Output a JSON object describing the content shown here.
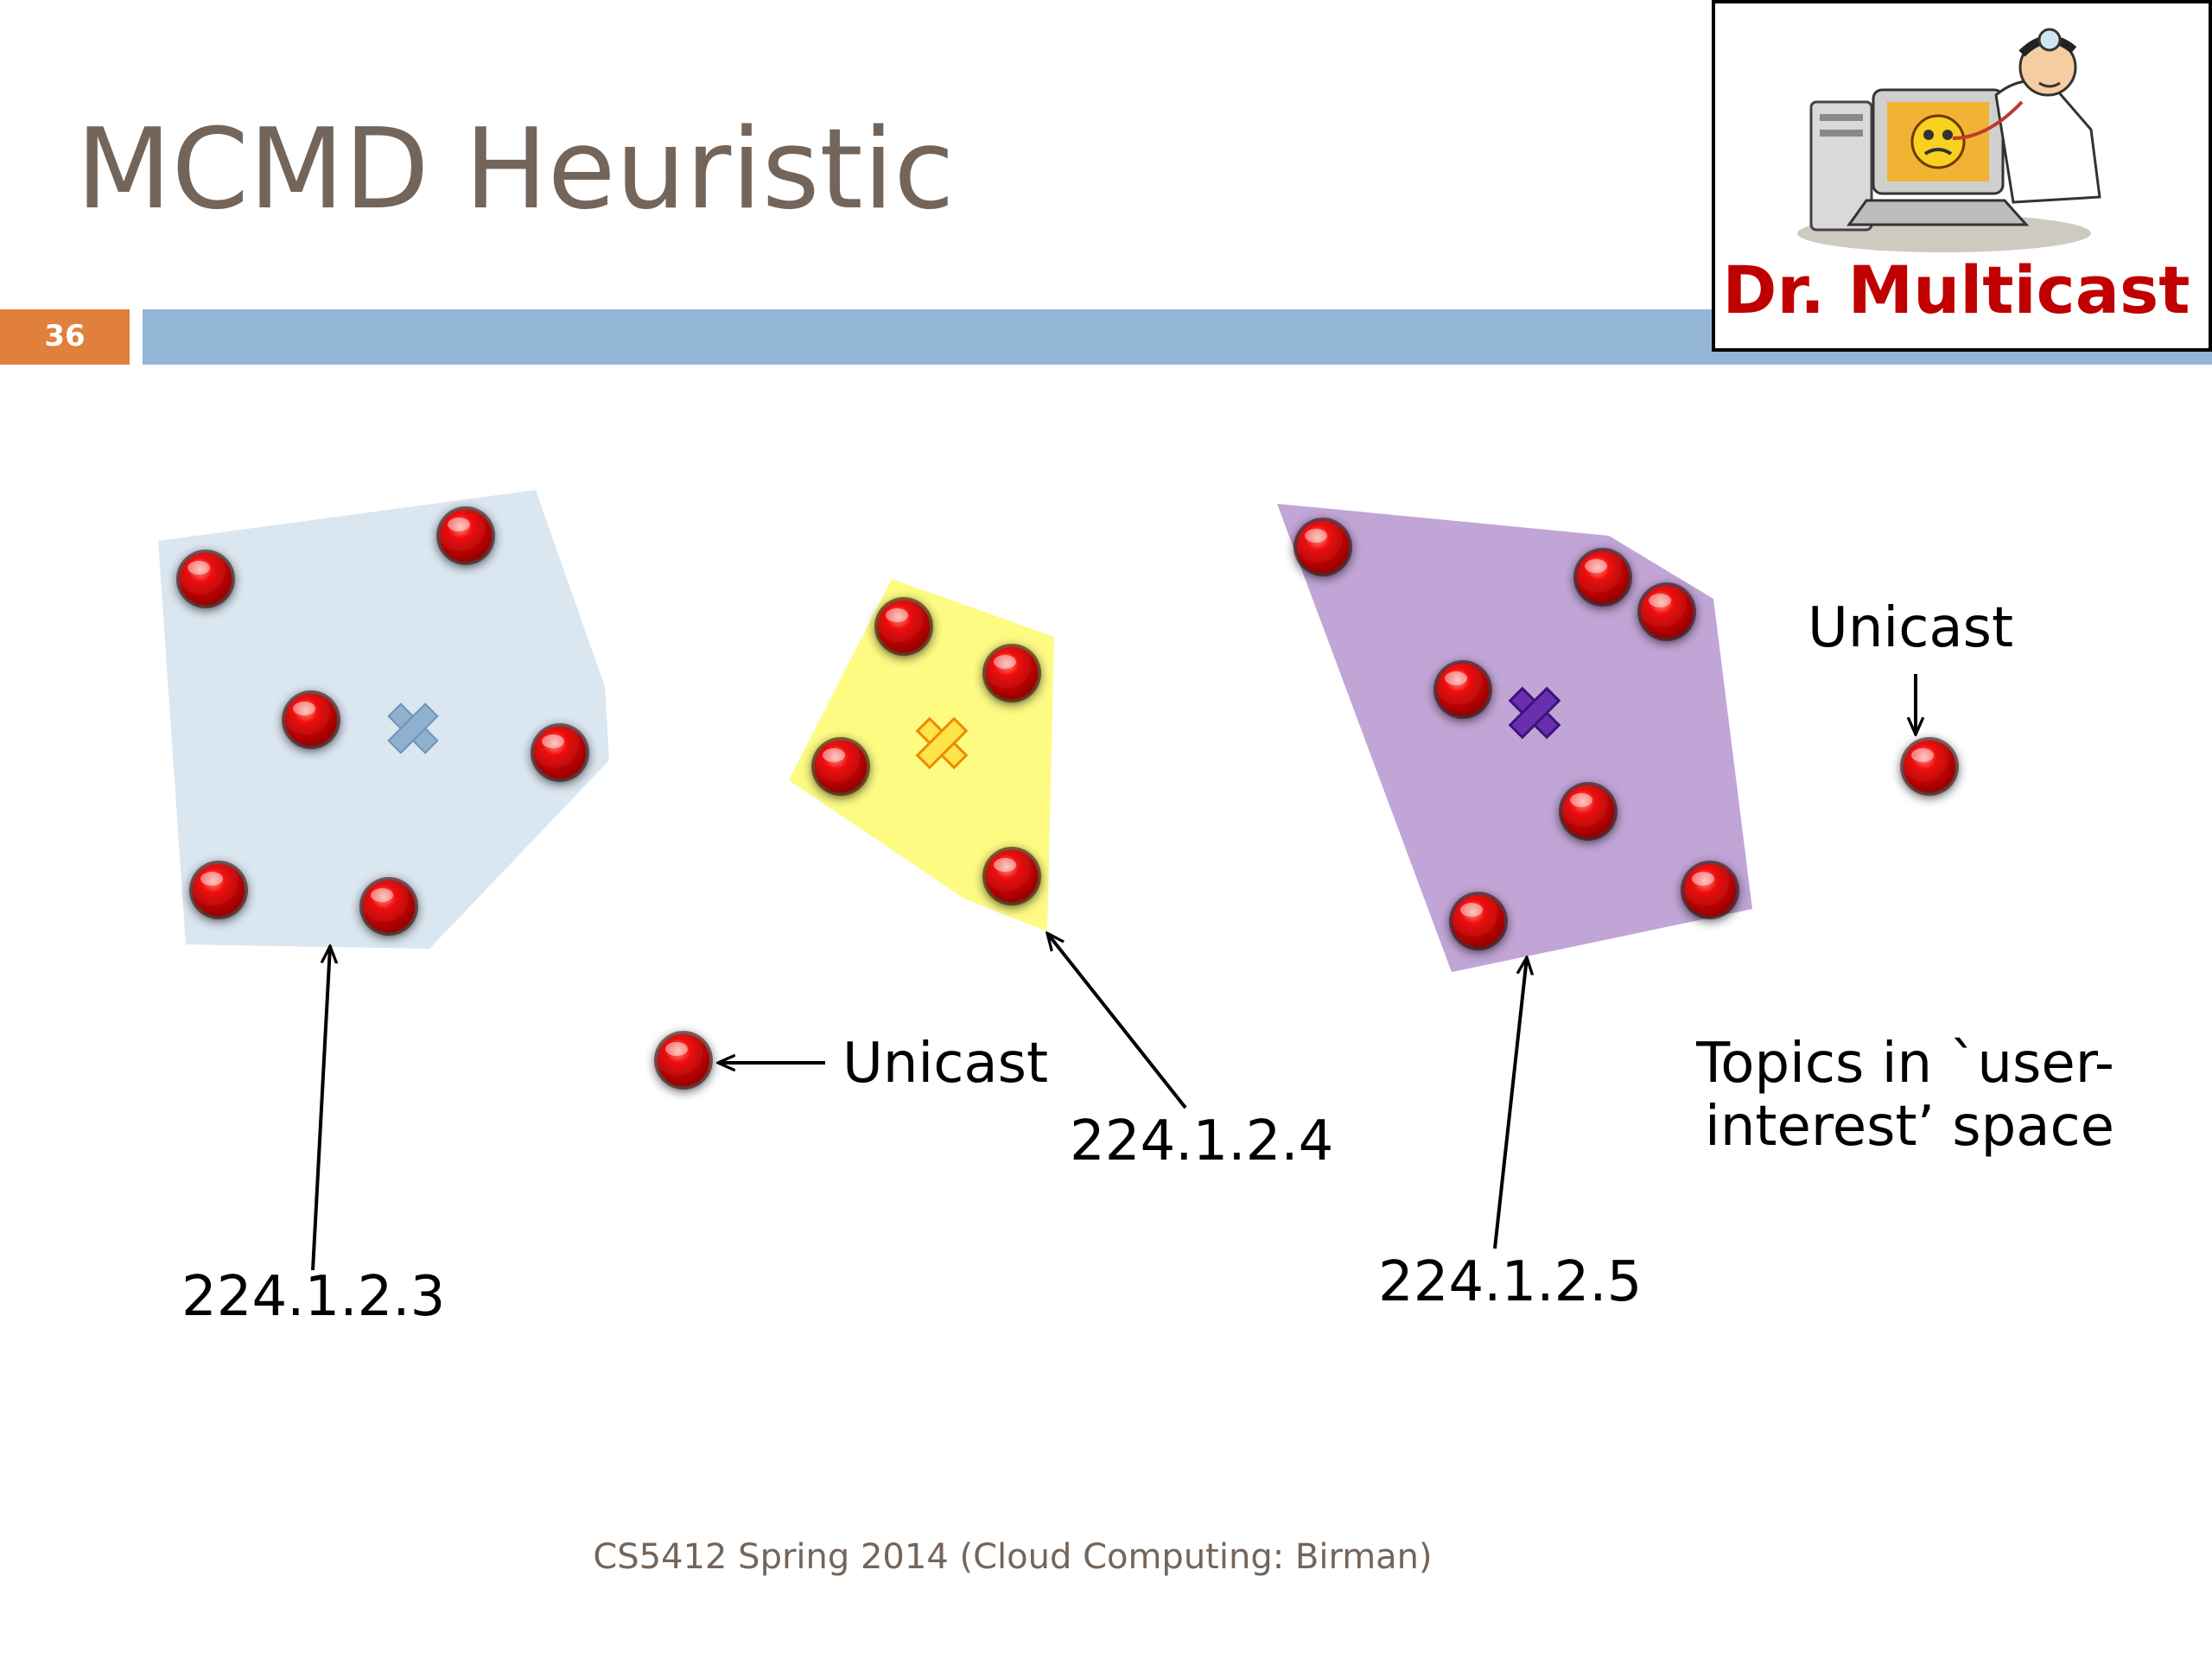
{
  "slide": {
    "title": "MCMD Heuristic",
    "number": "36",
    "footer": "CS5412 Spring 2014 (Cloud Computing: Birman)"
  },
  "logo": {
    "caption": "Dr. Multicast"
  },
  "labels": {
    "group_a": "224.1.2.3",
    "group_b": "224.1.2.4",
    "group_c": "224.1.2.5",
    "unicast_left": "Unicast",
    "unicast_right": "Unicast",
    "topics_line1": "Topics in `user-",
    "topics_line2": "interest’ space"
  },
  "colors": {
    "title": "#74655a",
    "number_box": "#e0803a",
    "title_bar": "#93b5d6",
    "group_a_fill": "#dae6f0",
    "group_b_fill": "#fdfb82",
    "group_c_fill": "#c1a5d6",
    "node": "#e00000",
    "logo_caption": "#c00000"
  }
}
